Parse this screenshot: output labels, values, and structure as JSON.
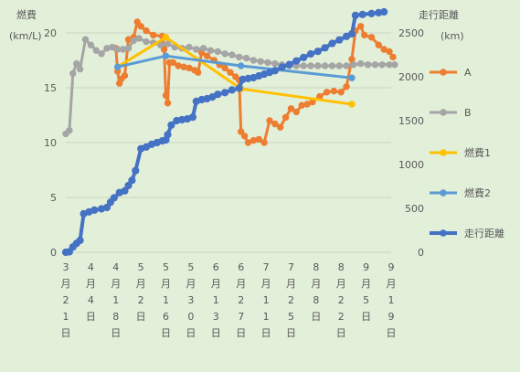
{
  "chart_data": {
    "type": "line",
    "y_left": {
      "label_line1": "燃費",
      "label_line2": "(km/L)",
      "min": 0,
      "max": 20,
      "ticks": [
        "0",
        "5",
        "10",
        "15",
        "20"
      ]
    },
    "y_right": {
      "label_line1": "走行距離",
      "label_line2": "(km)",
      "min": 0,
      "max": 2500,
      "ticks": [
        "0",
        "500",
        "1000",
        "1500",
        "2000",
        "2500"
      ]
    },
    "x_start": "2023-03-21",
    "x_end": "2023-09-19",
    "x_ticks": [
      "3月21日",
      "4月4日",
      "4月18日",
      "5月2日",
      "5月16日",
      "5月30日",
      "6月13日",
      "6月27日",
      "7月11日",
      "7月25日",
      "8月8日",
      "8月22日",
      "9月5日",
      "9月19日"
    ],
    "legend_position": "right",
    "series": [
      {
        "name": "A",
        "color": "#ed7d31",
        "axis": "left",
        "marker": true,
        "points": [
          [
            "2023-04-18",
            18.6
          ],
          [
            "2023-04-19",
            16.5
          ],
          [
            "2023-04-20",
            15.4
          ],
          [
            "2023-04-21",
            15.8
          ],
          [
            "2023-04-23",
            16.1
          ],
          [
            "2023-04-25",
            19.4
          ],
          [
            "2023-04-28",
            19.6
          ],
          [
            "2023-04-30",
            21.0
          ],
          [
            "2023-05-02",
            20.6
          ],
          [
            "2023-05-05",
            20.2
          ],
          [
            "2023-05-09",
            19.8
          ],
          [
            "2023-05-14",
            19.7
          ],
          [
            "2023-05-15",
            18.5
          ],
          [
            "2023-05-16",
            14.3
          ],
          [
            "2023-05-17",
            13.6
          ],
          [
            "2023-05-18",
            17.3
          ],
          [
            "2023-05-20",
            17.3
          ],
          [
            "2023-05-23",
            17.0
          ],
          [
            "2023-05-26",
            16.9
          ],
          [
            "2023-05-29",
            16.8
          ],
          [
            "2023-06-01",
            16.6
          ],
          [
            "2023-06-03",
            16.4
          ],
          [
            "2023-06-05",
            18.2
          ],
          [
            "2023-06-08",
            17.9
          ],
          [
            "2023-06-12",
            17.5
          ],
          [
            "2023-06-15",
            17.1
          ],
          [
            "2023-06-18",
            16.8
          ],
          [
            "2023-06-21",
            16.4
          ],
          [
            "2023-06-24",
            16.0
          ],
          [
            "2023-06-26",
            15.7
          ],
          [
            "2023-06-27",
            11.0
          ],
          [
            "2023-06-29",
            10.6
          ],
          [
            "2023-07-01",
            10.0
          ],
          [
            "2023-07-04",
            10.2
          ],
          [
            "2023-07-07",
            10.3
          ],
          [
            "2023-07-10",
            10.0
          ],
          [
            "2023-07-13",
            12.0
          ],
          [
            "2023-07-16",
            11.7
          ],
          [
            "2023-07-19",
            11.4
          ],
          [
            "2023-07-22",
            12.3
          ],
          [
            "2023-07-25",
            13.1
          ],
          [
            "2023-07-28",
            12.8
          ],
          [
            "2023-07-31",
            13.4
          ],
          [
            "2023-08-03",
            13.5
          ],
          [
            "2023-08-06",
            13.7
          ],
          [
            "2023-08-10",
            14.2
          ],
          [
            "2023-08-14",
            14.6
          ],
          [
            "2023-08-18",
            14.7
          ],
          [
            "2023-08-22",
            14.6
          ],
          [
            "2023-08-25",
            15.1
          ],
          [
            "2023-08-28",
            17.6
          ],
          [
            "2023-08-30",
            20.2
          ],
          [
            "2023-09-02",
            20.6
          ],
          [
            "2023-09-04",
            19.8
          ],
          [
            "2023-09-08",
            19.6
          ],
          [
            "2023-09-12",
            18.9
          ],
          [
            "2023-09-15",
            18.5
          ],
          [
            "2023-09-18",
            18.3
          ],
          [
            "2023-09-20",
            17.8
          ]
        ]
      },
      {
        "name": "B",
        "color": "#a5a5a5",
        "axis": "left",
        "marker": true,
        "points": [
          [
            "2023-03-21",
            10.8
          ],
          [
            "2023-03-23",
            11.1
          ],
          [
            "2023-03-25",
            16.3
          ],
          [
            "2023-03-27",
            17.2
          ],
          [
            "2023-03-29",
            16.7
          ],
          [
            "2023-04-01",
            19.4
          ],
          [
            "2023-04-04",
            18.9
          ],
          [
            "2023-04-07",
            18.4
          ],
          [
            "2023-04-10",
            18.1
          ],
          [
            "2023-04-13",
            18.6
          ],
          [
            "2023-04-16",
            18.7
          ],
          [
            "2023-04-19",
            18.5
          ],
          [
            "2023-04-22",
            18.5
          ],
          [
            "2023-04-25",
            18.6
          ],
          [
            "2023-04-28",
            19.3
          ],
          [
            "2023-05-01",
            19.5
          ],
          [
            "2023-05-05",
            19.2
          ],
          [
            "2023-05-09",
            19.1
          ],
          [
            "2023-05-13",
            18.9
          ],
          [
            "2023-05-17",
            19.0
          ],
          [
            "2023-05-21",
            18.7
          ],
          [
            "2023-05-25",
            18.6
          ],
          [
            "2023-05-29",
            18.7
          ],
          [
            "2023-06-02",
            18.5
          ],
          [
            "2023-06-06",
            18.6
          ],
          [
            "2023-06-10",
            18.4
          ],
          [
            "2023-06-14",
            18.3
          ],
          [
            "2023-06-18",
            18.1
          ],
          [
            "2023-06-22",
            18.0
          ],
          [
            "2023-06-26",
            17.8
          ],
          [
            "2023-06-30",
            17.7
          ],
          [
            "2023-07-04",
            17.5
          ],
          [
            "2023-07-08",
            17.4
          ],
          [
            "2023-07-12",
            17.3
          ],
          [
            "2023-07-16",
            17.2
          ],
          [
            "2023-07-20",
            17.1
          ],
          [
            "2023-07-24",
            17.0
          ],
          [
            "2023-07-28",
            17.0
          ],
          [
            "2023-08-01",
            17.0
          ],
          [
            "2023-08-05",
            17.0
          ],
          [
            "2023-08-09",
            17.0
          ],
          [
            "2023-08-13",
            17.0
          ],
          [
            "2023-08-17",
            17.0
          ],
          [
            "2023-08-21",
            17.0
          ],
          [
            "2023-08-25",
            17.0
          ],
          [
            "2023-08-29",
            17.1
          ],
          [
            "2023-09-02",
            17.2
          ],
          [
            "2023-09-06",
            17.1
          ],
          [
            "2023-09-10",
            17.1
          ],
          [
            "2023-09-14",
            17.1
          ],
          [
            "2023-09-18",
            17.1
          ],
          [
            "2023-09-21",
            17.1
          ]
        ]
      },
      {
        "name": "燃費1",
        "color": "#ffc000",
        "axis": "left",
        "marker": true,
        "points": [
          [
            "2023-04-19",
            16.9
          ],
          [
            "2023-05-16",
            19.6
          ],
          [
            "2023-06-27",
            14.9
          ],
          [
            "2023-08-28",
            13.5
          ]
        ]
      },
      {
        "name": "燃費2",
        "color": "#5b9bd5",
        "axis": "left",
        "marker": true,
        "points": [
          [
            "2023-04-19",
            16.9
          ],
          [
            "2023-05-16",
            17.9
          ],
          [
            "2023-06-27",
            17.0
          ],
          [
            "2023-08-28",
            15.9
          ]
        ]
      },
      {
        "name": "走行距離",
        "color": "#4472c4",
        "axis": "right",
        "marker": true,
        "points": [
          [
            "2023-03-21",
            0
          ],
          [
            "2023-03-23",
            5
          ],
          [
            "2023-03-25",
            60
          ],
          [
            "2023-03-27",
            100
          ],
          [
            "2023-03-29",
            135
          ],
          [
            "2023-03-31",
            440
          ],
          [
            "2023-04-03",
            460
          ],
          [
            "2023-04-06",
            480
          ],
          [
            "2023-04-10",
            495
          ],
          [
            "2023-04-13",
            510
          ],
          [
            "2023-04-15",
            570
          ],
          [
            "2023-04-17",
            620
          ],
          [
            "2023-04-20",
            680
          ],
          [
            "2023-04-23",
            700
          ],
          [
            "2023-04-25",
            760
          ],
          [
            "2023-04-27",
            820
          ],
          [
            "2023-04-29",
            930
          ],
          [
            "2023-05-02",
            1180
          ],
          [
            "2023-05-05",
            1200
          ],
          [
            "2023-05-08",
            1230
          ],
          [
            "2023-05-11",
            1250
          ],
          [
            "2023-05-14",
            1270
          ],
          [
            "2023-05-16",
            1280
          ],
          [
            "2023-05-17",
            1340
          ],
          [
            "2023-05-19",
            1450
          ],
          [
            "2023-05-22",
            1500
          ],
          [
            "2023-05-25",
            1510
          ],
          [
            "2023-05-28",
            1520
          ],
          [
            "2023-05-31",
            1540
          ],
          [
            "2023-06-02",
            1720
          ],
          [
            "2023-06-05",
            1740
          ],
          [
            "2023-06-08",
            1750
          ],
          [
            "2023-06-11",
            1770
          ],
          [
            "2023-06-14",
            1800
          ],
          [
            "2023-06-18",
            1820
          ],
          [
            "2023-06-22",
            1850
          ],
          [
            "2023-06-26",
            1870
          ],
          [
            "2023-06-28",
            1970
          ],
          [
            "2023-07-01",
            1980
          ],
          [
            "2023-07-04",
            1990
          ],
          [
            "2023-07-07",
            2010
          ],
          [
            "2023-07-10",
            2030
          ],
          [
            "2023-07-13",
            2050
          ],
          [
            "2023-07-16",
            2070
          ],
          [
            "2023-07-20",
            2110
          ],
          [
            "2023-07-24",
            2140
          ],
          [
            "2023-07-28",
            2180
          ],
          [
            "2023-08-01",
            2220
          ],
          [
            "2023-08-05",
            2260
          ],
          [
            "2023-08-09",
            2290
          ],
          [
            "2023-08-13",
            2330
          ],
          [
            "2023-08-17",
            2380
          ],
          [
            "2023-08-21",
            2420
          ],
          [
            "2023-08-25",
            2460
          ],
          [
            "2023-08-28",
            2490
          ],
          [
            "2023-08-30",
            2700
          ],
          [
            "2023-09-03",
            2710
          ],
          [
            "2023-09-08",
            2720
          ],
          [
            "2023-09-12",
            2730
          ],
          [
            "2023-09-15",
            2740
          ]
        ]
      }
    ]
  }
}
